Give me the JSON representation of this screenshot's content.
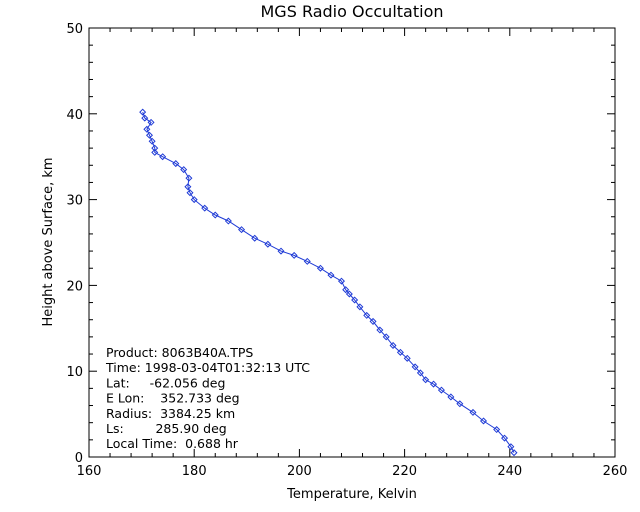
{
  "chart_data": {
    "type": "line",
    "title": "MGS Radio Occultation",
    "xlabel": "Temperature, Kelvin",
    "ylabel": "Height above Surface, km",
    "xlim": [
      160,
      260
    ],
    "ylim": [
      0,
      50
    ],
    "x_ticks": [
      "160",
      "180",
      "200",
      "220",
      "240",
      "260"
    ],
    "y_ticks": [
      "0",
      "10",
      "20",
      "30",
      "40",
      "50"
    ],
    "grid": false,
    "line_color": "#1f3bd6",
    "marker": "diamond",
    "series": [
      {
        "x": [
          240.8,
          240.2,
          239.0,
          237.5,
          235.0,
          233.0,
          230.5,
          228.8,
          227.0,
          225.5,
          224.0,
          223.0,
          222.0,
          220.5,
          219.2,
          217.8,
          216.5,
          215.3,
          214.0,
          212.8,
          211.5,
          210.5,
          209.5,
          208.8,
          208.0,
          206.0,
          204.0,
          201.5,
          199.0,
          196.5,
          194.0,
          191.5,
          189.0,
          186.5,
          184.0,
          182.0,
          180.0,
          179.2,
          178.8,
          179.0,
          178.0,
          176.5,
          174.0,
          172.5,
          172.5,
          172.0,
          171.5,
          171.0,
          171.8,
          170.6,
          170.2
        ],
        "y": [
          0.5,
          1.2,
          2.2,
          3.2,
          4.2,
          5.2,
          6.2,
          7.0,
          7.8,
          8.5,
          9.0,
          9.8,
          10.5,
          11.5,
          12.2,
          13.0,
          14.0,
          14.8,
          15.8,
          16.5,
          17.5,
          18.3,
          19.0,
          19.5,
          20.5,
          21.2,
          22.0,
          22.8,
          23.5,
          24.0,
          24.8,
          25.5,
          26.5,
          27.5,
          28.2,
          29.0,
          30.0,
          30.8,
          31.5,
          32.5,
          33.5,
          34.2,
          35.0,
          35.5,
          36.0,
          36.8,
          37.5,
          38.2,
          39.0,
          39.5,
          40.2
        ]
      }
    ],
    "annotations": [
      "Product: 8063B40A.TPS",
      "Time: 1998-03-04T01:32:13 UTC",
      "Lat:     -62.056 deg",
      "E Lon:    352.733 deg",
      "Radius:  3384.25 km",
      "Ls:        285.90 deg",
      "Local Time:  0.688 hr"
    ]
  }
}
